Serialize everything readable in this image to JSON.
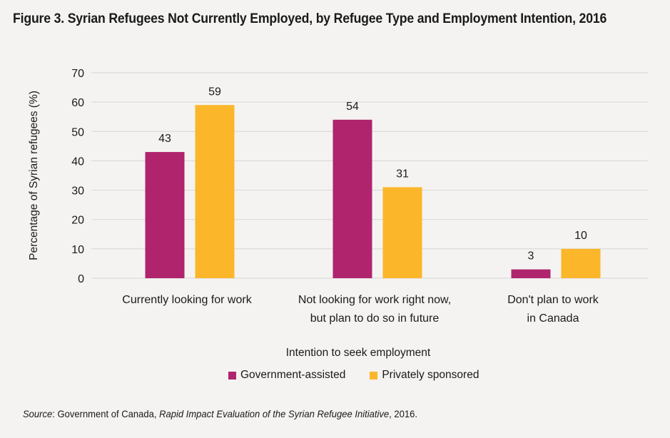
{
  "title": "Figure 3. Syrian Refugees Not Currently Employed, by Refugee Type and Employment Intention, 2016",
  "source": {
    "label": "Source",
    "text1": ": Government of Canada, ",
    "report": "Rapid Impact Evaluation of the Syrian Refugee Initiative",
    "text2": ", 2016."
  },
  "chart_data": {
    "type": "bar",
    "categories": [
      [
        "Currently looking for work"
      ],
      [
        "Not looking for work right now,",
        "but plan to do so in future"
      ],
      [
        "Don't plan to work",
        "in Canada"
      ]
    ],
    "series": [
      {
        "name": "Government-assisted",
        "values": [
          43,
          54,
          3
        ],
        "color": "#b0246e"
      },
      {
        "name": "Privately sponsored",
        "values": [
          59,
          31,
          10
        ],
        "color": "#fbb62a"
      }
    ],
    "xlabel": "Intention to seek employment",
    "ylabel": "Percentage of Syrian refugees (%)",
    "ylim": [
      0,
      70
    ],
    "yticks": [
      0,
      10,
      20,
      30,
      40,
      50,
      60,
      70
    ],
    "grid": true,
    "legend": "bottom"
  }
}
